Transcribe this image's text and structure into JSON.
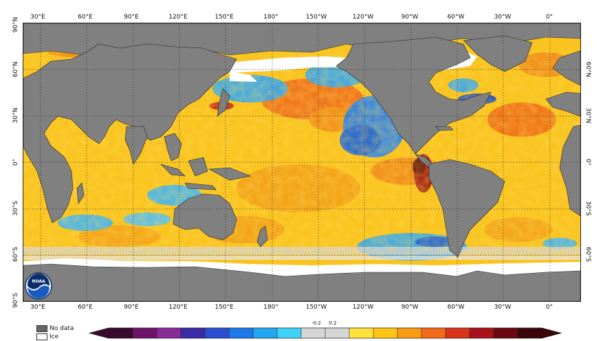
{
  "axes": {
    "top": [
      "30°E",
      "60°E",
      "90°E",
      "120°E",
      "150°E",
      "180°",
      "150°W",
      "120°W",
      "90°W",
      "60°W",
      "30°W",
      "0°"
    ],
    "bottom": [
      "30°E",
      "60°E",
      "90°E",
      "120°E",
      "150°E",
      "180°",
      "150°W",
      "120°W",
      "90°W",
      "60°W",
      "30°W",
      "0°"
    ],
    "left": [
      "90°N",
      "60°N",
      "30°N",
      "0°",
      "30°S",
      "60°S",
      "90°S"
    ],
    "right": [
      "60°N",
      "30°N",
      "0°",
      "30°S",
      "60°S"
    ]
  },
  "logo": {
    "text": "NOAA"
  },
  "legend": {
    "items": [
      {
        "label": "No data",
        "color": "#808080"
      },
      {
        "label": "Ice",
        "color": "#ffffff"
      }
    ]
  },
  "colorbar": {
    "labels": [
      "-0.2",
      "0.2"
    ],
    "colors": [
      "#3a0a2e",
      "#6d1468",
      "#8a2a96",
      "#3b2aa8",
      "#2b4fd0",
      "#1d78e8",
      "#22a5f2",
      "#3ed2f7",
      "#d6d6d6",
      "#d6d6d6",
      "#ffe23a",
      "#ffc515",
      "#f99a12",
      "#f26a17",
      "#d9331a",
      "#a9121a",
      "#6b0810",
      "#3a0508"
    ]
  },
  "colors": {
    "land": "#808080",
    "ocean_warm": "#f9c41f",
    "ocean_hot": "#ef6b1c",
    "ocean_cool": "#36a9f1",
    "ocean_cold": "#1463d8",
    "ice": "#ffffff"
  }
}
